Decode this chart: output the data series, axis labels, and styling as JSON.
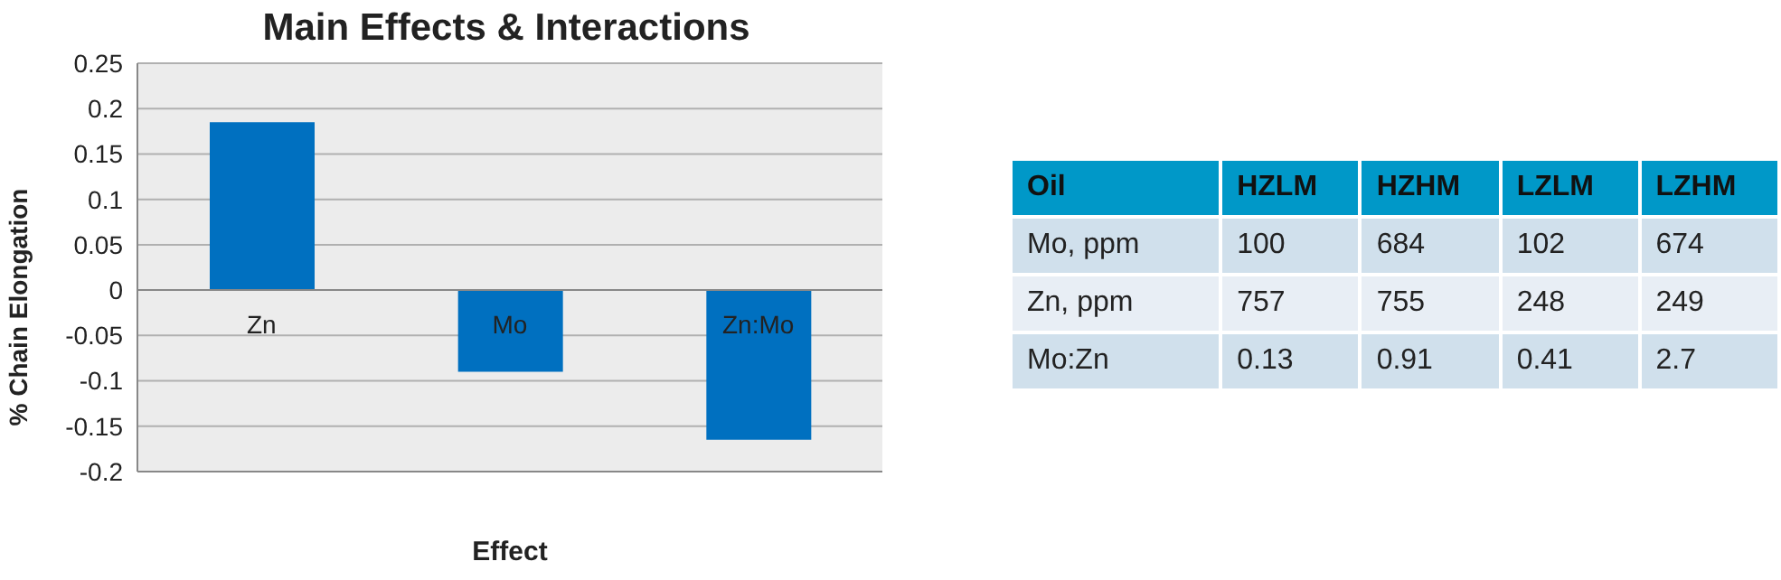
{
  "chart_data": [
    {
      "type": "bar",
      "title": "Main Effects & Interactions",
      "xlabel": "Effect",
      "ylabel": "% Chain Elongation",
      "categories": [
        "Zn",
        "Mo",
        "Zn:Mo"
      ],
      "values": [
        0.185,
        -0.09,
        -0.165
      ],
      "color": "#0070c0",
      "ylim": [
        -0.2,
        0.25
      ],
      "yticks": [
        -0.2,
        -0.15,
        -0.1,
        -0.05,
        0,
        0.05,
        0.1,
        0.15,
        0.2,
        0.25
      ],
      "grid": "y"
    },
    {
      "type": "heatmap",
      "data_labels": true,
      "xlabel": "Oil",
      "categories": [
        "HZLM",
        "HZHM",
        "LZLM",
        "LZHM"
      ],
      "y_categories": [
        "Mo, ppm",
        "Zn, ppm",
        "Mo:Zn"
      ],
      "cells": [
        [
          100,
          684,
          102,
          674
        ],
        [
          757,
          755,
          248,
          249
        ],
        [
          0.13,
          0.91,
          0.41,
          2.7
        ]
      ]
    }
  ]
}
